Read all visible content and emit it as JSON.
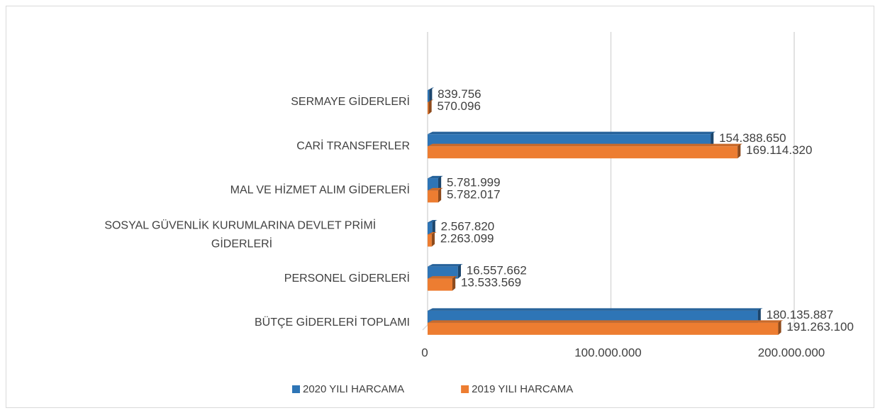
{
  "chart_data": {
    "type": "bar",
    "orientation": "horizontal",
    "categories": [
      "SERMAYE GİDERLERİ",
      "CARİ TRANSFERLER",
      "MAL VE HİZMET ALIM GİDERLERİ",
      "SOSYAL GÜVENLİK KURUMLARINA DEVLET PRİMİ GİDERLERİ",
      "PERSONEL GİDERLERİ",
      "BÜTÇE GİDERLERİ TOPLAMI"
    ],
    "series": [
      {
        "name": "2020 YILI HARCAMA",
        "color": "#2e75b6",
        "values": [
          839756,
          154388650,
          5781999,
          2567820,
          16557662,
          180135887
        ],
        "value_labels": [
          "839.756",
          "154.388.650",
          "5.781.999",
          "2.567.820",
          "16.557.662",
          "180.135.887"
        ]
      },
      {
        "name": "2019 YILI HARCAMA",
        "color": "#ed7d31",
        "values": [
          570096,
          169114320,
          5782017,
          2263099,
          13533569,
          191263100
        ],
        "value_labels": [
          "570.096",
          "169.114.320",
          "5.782.017",
          "2.263.099",
          "13.533.569",
          "191.263.100"
        ]
      }
    ],
    "xlim": [
      0,
      200000000
    ],
    "xticks": [
      0,
      {
        "value": 100000000,
        "label": "100.000.000"
      },
      {
        "value": 200000000,
        "label": "200.000.000"
      }
    ],
    "grid": true,
    "legend": "bottom"
  }
}
